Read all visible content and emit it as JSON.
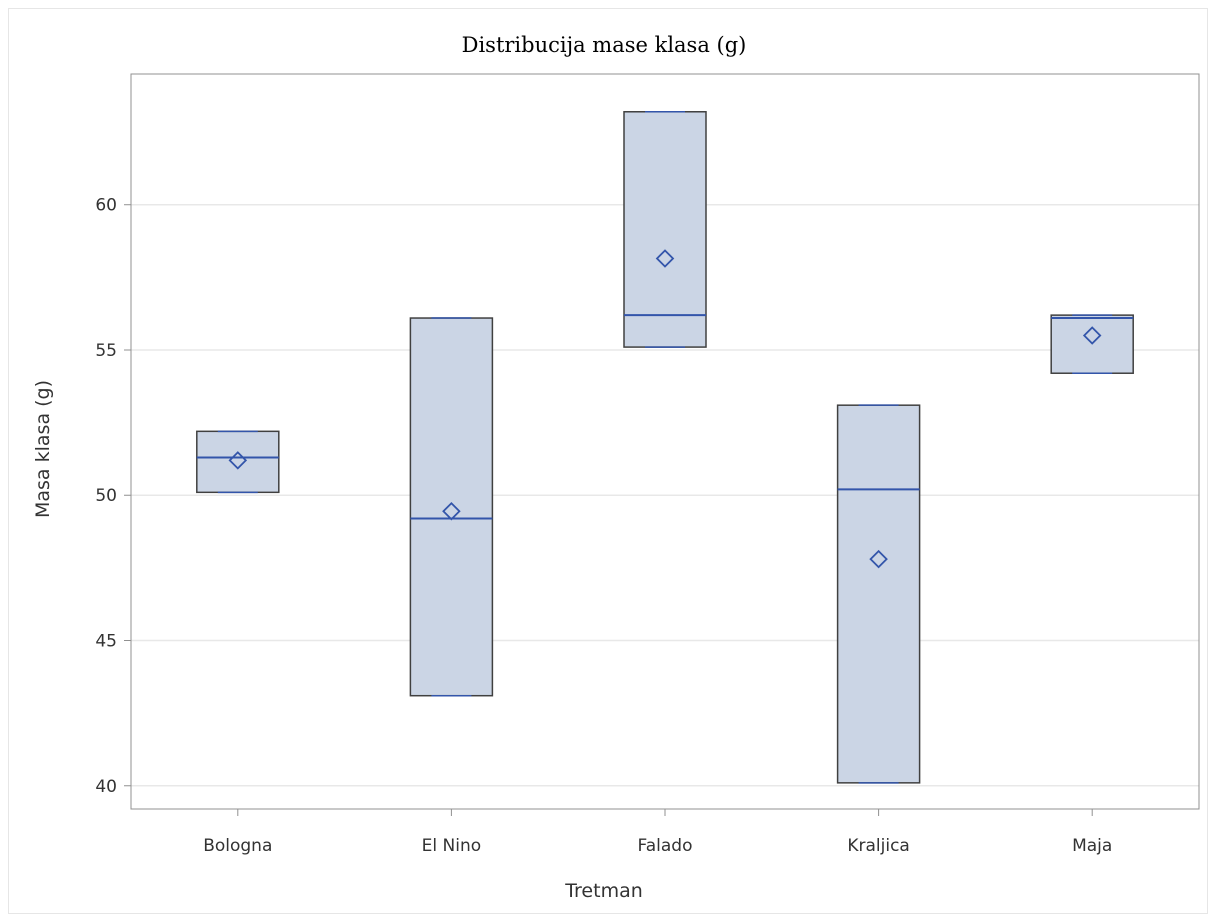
{
  "chart_data": {
    "type": "box",
    "title": "Distribucija mase klasa (g)",
    "xlabel": "Tretman",
    "ylabel": "Masa klasa (g)",
    "ylim": [
      39.2,
      64.5
    ],
    "yticks": [
      40,
      45,
      50,
      55,
      60
    ],
    "grid": true,
    "colors": {
      "box_fill": "#cbd5e5",
      "box_edge": "#404040",
      "median": "#3355aa",
      "mean_marker": "#3355aa",
      "grid": "#e8e8e8",
      "axis": "#909090"
    },
    "categories": [
      "Bologna",
      "El Nino",
      "Falado",
      "Kraljica",
      "Maja"
    ],
    "boxes": [
      {
        "category": "Bologna",
        "min": 50.1,
        "q1": 50.1,
        "median": 51.3,
        "q3": 52.2,
        "max": 52.2,
        "mean": 51.2
      },
      {
        "category": "El Nino",
        "min": 43.1,
        "q1": 43.1,
        "median": 49.2,
        "q3": 56.1,
        "max": 56.1,
        "mean": 49.45
      },
      {
        "category": "Falado",
        "min": 55.1,
        "q1": 55.1,
        "median": 56.2,
        "q3": 63.2,
        "max": 63.2,
        "mean": 58.15
      },
      {
        "category": "Kraljica",
        "min": 40.1,
        "q1": 40.1,
        "median": 50.2,
        "q3": 53.1,
        "max": 53.1,
        "mean": 47.8
      },
      {
        "category": "Maja",
        "min": 54.2,
        "q1": 54.2,
        "median": 56.1,
        "q3": 56.2,
        "max": 56.2,
        "mean": 55.5
      }
    ]
  }
}
